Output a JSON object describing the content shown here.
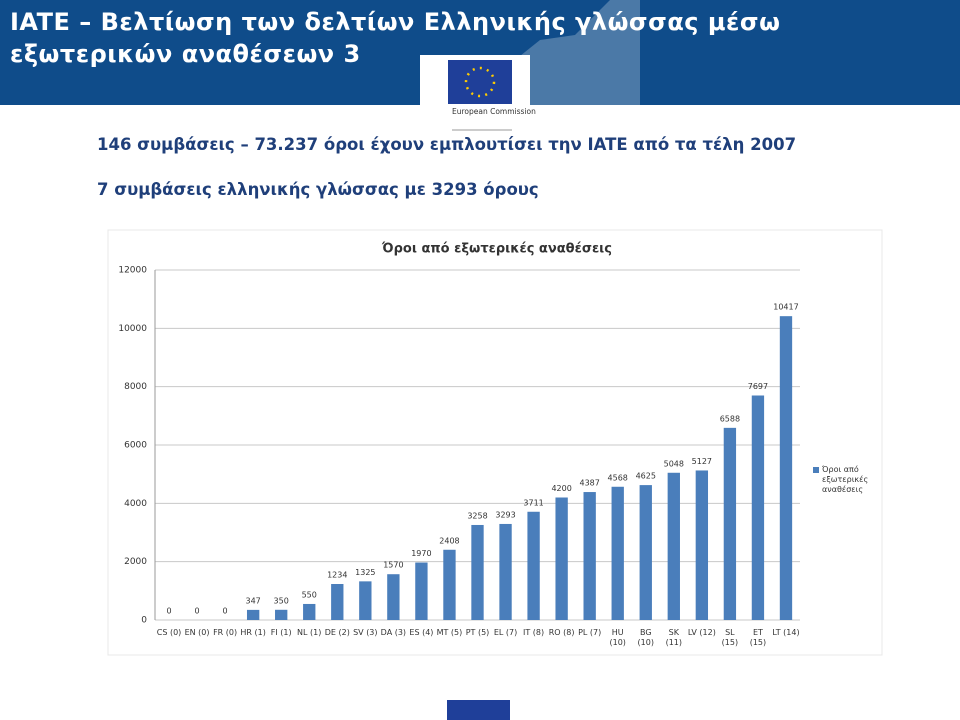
{
  "header": {
    "title": "IATE – Βελτίωση των δελτίων Ελληνικής γλώσσας μέσω εξωτερικών αναθέσεων 3",
    "logo_text": "European Commission"
  },
  "lines": [
    "146 συμβάσεις – 73.237 όροι έχουν εμπλουτίσει την IATE από τα τέλη 2007",
    "7 συμβάσεις ελληνικής γλώσσας με 3293 όρους"
  ],
  "chart_data": {
    "type": "bar",
    "title": "Όροι από εξωτερικές αναθέσεις",
    "categories": [
      "CS (0)",
      "EN (0)",
      "FR (0)",
      "HR (1)",
      "FI (1)",
      "NL (1)",
      "DE (2)",
      "SV (3)",
      "DA (3)",
      "ES (4)",
      "MT (5)",
      "PT (5)",
      "EL (7)",
      "IT (8)",
      "RO (8)",
      "PL (7)",
      "HU (10)",
      "BG (10)",
      "SK (11)",
      "LV (12)",
      "SL (15)",
      "ET (15)",
      "LT (14)"
    ],
    "series": [
      {
        "name": "Όροι από εξωτερικές αναθέσεις",
        "color": "#4a7ebb",
        "values": [
          0,
          0,
          0,
          347,
          350,
          550,
          1234,
          1325,
          1570,
          1970,
          2408,
          3258,
          3293,
          3711,
          4200,
          4387,
          4568,
          4625,
          5048,
          5127,
          6588,
          7697,
          10417
        ]
      }
    ],
    "ylim": [
      0,
      12000
    ],
    "yticks": [
      0,
      2000,
      4000,
      6000,
      8000,
      10000,
      12000
    ],
    "grid": true,
    "legend": "right"
  }
}
